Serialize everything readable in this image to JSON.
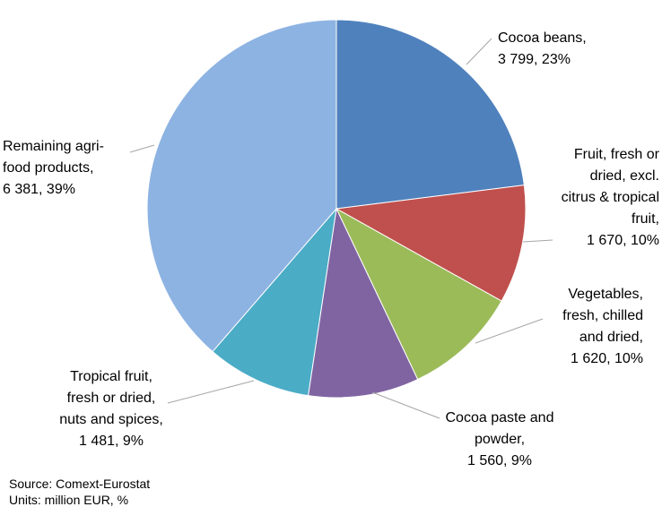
{
  "chart_data": {
    "type": "pie",
    "title": "",
    "slices": [
      {
        "name": "Cocoa beans",
        "value": 3799,
        "pct": "23%",
        "value_label": "3 799",
        "color": "#4F81BD",
        "label_lines": [
          "Cocoa beans,",
          "3 799, 23%"
        ]
      },
      {
        "name": "Fruit, fresh or dried, excl. citrus & tropical fruit",
        "value": 1670,
        "pct": "10%",
        "value_label": "1 670",
        "color": "#C0504D",
        "label_lines": [
          "Fruit, fresh or",
          "dried, excl.",
          "citrus & tropical",
          "fruit,",
          "1 670, 10%"
        ]
      },
      {
        "name": "Vegetables, fresh, chilled and dried",
        "value": 1620,
        "pct": "10%",
        "value_label": "1 620",
        "color": "#9BBB59",
        "label_lines": [
          "Vegetables,",
          "fresh, chilled",
          "and dried,",
          "1 620, 10%"
        ]
      },
      {
        "name": "Cocoa paste and powder",
        "value": 1560,
        "pct": "9%",
        "value_label": "1 560",
        "color": "#8064A2",
        "label_lines": [
          "Cocoa paste and",
          "powder,",
          "1 560, 9%"
        ]
      },
      {
        "name": "Tropical fruit, fresh or dried, nuts and spices",
        "value": 1481,
        "pct": "9%",
        "value_label": "1 481",
        "color": "#4BACC6",
        "label_lines": [
          "Tropical fruit,",
          "fresh or dried,",
          "nuts and spices,",
          "1 481, 9%"
        ]
      },
      {
        "name": "Remaining agri-food products",
        "value": 6381,
        "pct": "39%",
        "value_label": "6 381",
        "color": "#8DB3E2",
        "label_lines": [
          "Remaining agri-",
          "food products,",
          "6 381, 39%"
        ]
      }
    ]
  },
  "notes": {
    "source": "Source: Comext-Eurostat",
    "units": "Units: million EUR, %"
  }
}
